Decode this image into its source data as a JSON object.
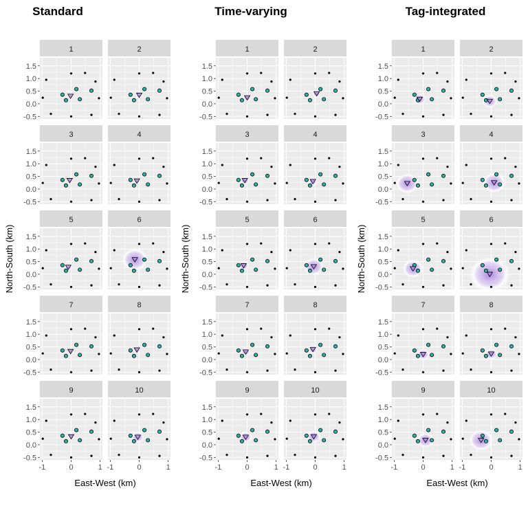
{
  "chart_data": {
    "type": "scatter",
    "figure_layout": "three groups of small-multiple scatter panels, 2 columns x 5 rows each",
    "colors": {
      "panel_background": "#ebebeb",
      "grid": "#ffffff",
      "strip_background": "#d9d9d9",
      "fixed_point": "#000000",
      "receiver_fill": "#2bb3a3",
      "estimate_fill": "#b48ce6",
      "density_cloud": "#9b6fe0"
    },
    "x_axis": {
      "label": "East-West (km)",
      "ticks": [
        "-1",
        "0",
        "1"
      ],
      "tick_values": [
        -1,
        0,
        1
      ],
      "range": [
        -1.08,
        1.08
      ]
    },
    "y_axis": {
      "label": "North-South (km)",
      "ticks": [
        "1.5",
        "1.0",
        "0.5",
        "0.0",
        "-0.5"
      ],
      "tick_values": [
        1.5,
        1.0,
        0.5,
        0.0,
        -0.5
      ],
      "range": [
        -0.6,
        1.82
      ]
    },
    "fixed_points": [
      {
        "x": -0.86,
        "y": 0.95
      },
      {
        "x": -0.98,
        "y": 0.24
      },
      {
        "x": -0.7,
        "y": -0.4
      },
      {
        "x": 0.0,
        "y": 1.2
      },
      {
        "x": 0.48,
        "y": 1.22
      },
      {
        "x": 0.84,
        "y": 0.88
      },
      {
        "x": 0.96,
        "y": 0.22
      },
      {
        "x": 0.7,
        "y": -0.44
      },
      {
        "x": 0.0,
        "y": -0.5
      }
    ],
    "receivers": [
      {
        "x": -0.3,
        "y": 0.36
      },
      {
        "x": -0.18,
        "y": 0.14
      },
      {
        "x": 0.18,
        "y": 0.58
      },
      {
        "x": 0.3,
        "y": 0.18
      },
      {
        "x": 0.7,
        "y": 0.52
      }
    ],
    "groups": [
      {
        "title": "Standard",
        "panels": [
          {
            "label": "1",
            "estimate": {
              "x": -0.02,
              "y": 0.3
            },
            "cloud_radius": 0.08
          },
          {
            "label": "2",
            "estimate": {
              "x": 0.0,
              "y": 0.34
            },
            "cloud_radius": 0.1
          },
          {
            "label": "3",
            "estimate": {
              "x": -0.05,
              "y": 0.34
            },
            "cloud_radius": 0.08
          },
          {
            "label": "4",
            "estimate": {
              "x": -0.08,
              "y": 0.32
            },
            "cloud_radius": 0.1
          },
          {
            "label": "5",
            "estimate": {
              "x": -0.1,
              "y": 0.28
            },
            "cloud_radius": 0.12
          },
          {
            "label": "6",
            "estimate": {
              "x": -0.15,
              "y": 0.58
            },
            "cloud_radius": 0.45
          },
          {
            "label": "7",
            "estimate": {
              "x": -0.02,
              "y": 0.32
            },
            "cloud_radius": 0.1
          },
          {
            "label": "8",
            "estimate": {
              "x": -0.08,
              "y": 0.38
            },
            "cloud_radius": 0.1
          },
          {
            "label": "9",
            "estimate": {
              "x": 0.0,
              "y": 0.32
            },
            "cloud_radius": 0.1
          },
          {
            "label": "10",
            "estimate": {
              "x": -0.05,
              "y": 0.3
            },
            "cloud_radius": 0.22
          }
        ]
      },
      {
        "title": "Time-varying",
        "panels": [
          {
            "label": "1",
            "estimate": {
              "x": 0.0,
              "y": 0.24
            },
            "cloud_radius": 0.14
          },
          {
            "label": "2",
            "estimate": {
              "x": 0.05,
              "y": 0.4
            },
            "cloud_radius": 0.14
          },
          {
            "label": "3",
            "estimate": {
              "x": -0.08,
              "y": 0.34
            },
            "cloud_radius": 0.16
          },
          {
            "label": "4",
            "estimate": {
              "x": -0.08,
              "y": 0.3
            },
            "cloud_radius": 0.16
          },
          {
            "label": "5",
            "estimate": {
              "x": -0.12,
              "y": 0.34
            },
            "cloud_radius": 0.18
          },
          {
            "label": "6",
            "estimate": {
              "x": -0.05,
              "y": 0.3
            },
            "cloud_radius": 0.35
          },
          {
            "label": "7",
            "estimate": {
              "x": -0.05,
              "y": 0.3
            },
            "cloud_radius": 0.16
          },
          {
            "label": "8",
            "estimate": {
              "x": -0.08,
              "y": 0.4
            },
            "cloud_radius": 0.16
          },
          {
            "label": "9",
            "estimate": {
              "x": -0.05,
              "y": 0.3
            },
            "cloud_radius": 0.22
          },
          {
            "label": "10",
            "estimate": {
              "x": -0.05,
              "y": 0.32
            },
            "cloud_radius": 0.24
          }
        ]
      },
      {
        "title": "Tag-integrated",
        "panels": [
          {
            "label": "1",
            "estimate": {
              "x": -0.12,
              "y": 0.18
            },
            "cloud_radius": 0.22
          },
          {
            "label": "2",
            "estimate": {
              "x": -0.05,
              "y": 0.1
            },
            "cloud_radius": 0.26
          },
          {
            "label": "3",
            "estimate": {
              "x": -0.55,
              "y": 0.22
            },
            "cloud_radius": 0.4
          },
          {
            "label": "4",
            "estimate": {
              "x": 0.1,
              "y": 0.25
            },
            "cloud_radius": 0.4
          },
          {
            "label": "5",
            "estimate": {
              "x": -0.35,
              "y": 0.22
            },
            "cloud_radius": 0.36
          },
          {
            "label": "6",
            "estimate": {
              "x": -0.05,
              "y": 0.0
            },
            "cloud_radius": 0.7
          },
          {
            "label": "7",
            "estimate": {
              "x": 0.0,
              "y": 0.2
            },
            "cloud_radius": 0.22
          },
          {
            "label": "8",
            "estimate": {
              "x": 0.0,
              "y": 0.22
            },
            "cloud_radius": 0.22
          },
          {
            "label": "9",
            "estimate": {
              "x": 0.08,
              "y": 0.18
            },
            "cloud_radius": 0.3
          },
          {
            "label": "10",
            "estimate": {
              "x": -0.35,
              "y": 0.18
            },
            "cloud_radius": 0.42
          }
        ]
      }
    ]
  }
}
